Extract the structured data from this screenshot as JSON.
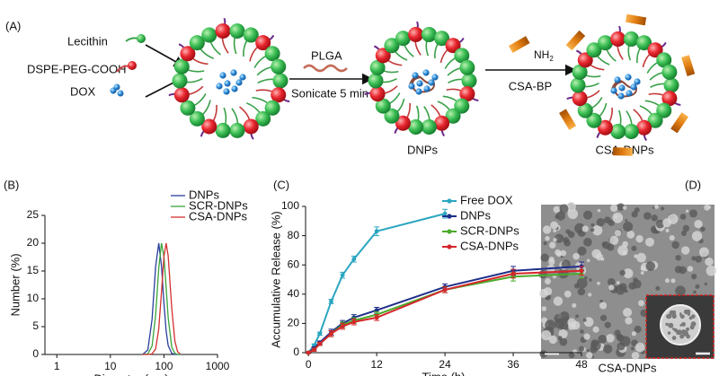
{
  "figure": {
    "panel_labels": [
      "(A)",
      "(B)",
      "(C)",
      "(D)"
    ],
    "scheme": {
      "components": [
        "Lecithin",
        "DSPE-PEG-COOH",
        "DOX"
      ],
      "step1": [
        "PLGA",
        "Sonicate 5 min"
      ],
      "reagent_group": [
        "NH",
        "2"
      ],
      "step2": "CSA-BP",
      "products": [
        "DNPs",
        "CSA-DNPs"
      ]
    },
    "tem_caption": "CSA-DNPs"
  },
  "chart_data": [
    {
      "type": "line",
      "xlabel": "Diameter (nm)",
      "ylabel": "Number (%)",
      "xscale": "log",
      "xlim": [
        0.6,
        1000
      ],
      "xticks": [
        1,
        10,
        100,
        1000
      ],
      "ylim": [
        0,
        25
      ],
      "yticks": [
        0,
        5,
        10,
        15,
        20,
        25
      ],
      "legend": "upper right",
      "markers": false,
      "x": [
        40,
        50,
        60,
        70,
        80,
        90,
        100,
        110,
        120,
        140,
        160,
        180,
        200
      ],
      "series": [
        {
          "name": "DNPs",
          "color": "#2a3e9e",
          "values": [
            0,
            0.8,
            6.3,
            15.8,
            20,
            15.9,
            9.2,
            4.2,
            1.6,
            0.2,
            0,
            0,
            0
          ]
        },
        {
          "name": "SCR-DNPs",
          "color": "#3aa43a",
          "values": [
            0,
            0.1,
            1.5,
            7.1,
            15.5,
            20,
            17.6,
            12,
            6.6,
            1.3,
            0.2,
            0,
            0
          ]
        },
        {
          "name": "CSA-DNPs",
          "color": "#d23030",
          "values": [
            0,
            0,
            0.1,
            1,
            4.6,
            11.2,
            17.6,
            20,
            17.7,
            8.3,
            2.4,
            0.5,
            0.1
          ]
        }
      ]
    },
    {
      "type": "line",
      "xlabel": "Time (h)",
      "ylabel": "Accumulative Release (%)",
      "xlim": [
        -0.5,
        48
      ],
      "xticks": [
        0,
        12,
        24,
        36,
        48
      ],
      "ylim": [
        0,
        100
      ],
      "yticks": [
        0,
        20,
        40,
        60,
        80,
        100
      ],
      "legend": "upper right",
      "markers": true,
      "x": [
        0,
        1,
        2,
        4,
        6,
        8,
        12,
        24,
        36,
        48
      ],
      "series": [
        {
          "name": "Free DOX",
          "color": "#2aa6c0",
          "values": [
            0,
            5,
            13,
            35,
            53,
            64,
            83,
            95,
            null,
            null
          ],
          "errors": [
            0.5,
            1,
            1,
            1.5,
            2,
            2,
            3,
            3,
            null,
            null
          ]
        },
        {
          "name": "DNPs",
          "color": "#1f2e8a",
          "values": [
            0,
            3,
            7,
            14,
            20,
            24,
            29,
            45,
            56,
            59
          ],
          "errors": [
            0.5,
            1,
            1,
            2,
            2,
            2,
            2,
            2,
            3,
            3
          ]
        },
        {
          "name": "SCR-DNPs",
          "color": "#4aab2b",
          "values": [
            0,
            2,
            6,
            13,
            19,
            22,
            26,
            43,
            52,
            54
          ],
          "errors": [
            0.5,
            1,
            1,
            2,
            2,
            2,
            2,
            2,
            3,
            3
          ]
        },
        {
          "name": "CSA-DNPs",
          "color": "#d6262b",
          "values": [
            0,
            2,
            6,
            13,
            18,
            21,
            24,
            43,
            54,
            56
          ],
          "errors": [
            0.5,
            1,
            1,
            2,
            2,
            2,
            2,
            2,
            3,
            3
          ]
        }
      ]
    }
  ]
}
